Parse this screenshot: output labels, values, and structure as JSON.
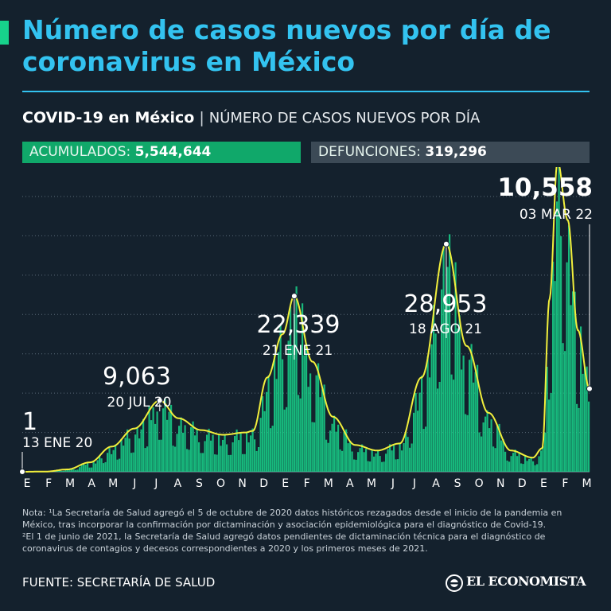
{
  "header": {
    "title": "Número de casos nuevos por día de coronavirus en México",
    "subtitle_bold": "COVID-19 en México",
    "subtitle_separator": "|",
    "subtitle_rest": "NÚMERO DE CASOS NUEVOS POR DÍA"
  },
  "stats": {
    "acumulados_label": "ACUMULADOS:",
    "acumulados_value": "5,544,644",
    "defunciones_label": "DEFUNCIONES:",
    "defunciones_value": "319,296"
  },
  "colors": {
    "background": "#14212d",
    "title": "#33c3f0",
    "bars": "#17d28b",
    "line": "#f2ef3c",
    "acumulados_box": "#10a86a",
    "defunciones_box": "#3c4a56"
  },
  "chart_data": {
    "type": "area",
    "title": "",
    "xlabel": "",
    "ylabel": "",
    "ylim": [
      0,
      35000
    ],
    "y_gridlines": [
      5000,
      10000,
      15000,
      20000,
      25000,
      30000,
      35000
    ],
    "grid": true,
    "x_tick_labels": [
      "E",
      "F",
      "M",
      "A",
      "M",
      "J",
      "J",
      "A",
      "S",
      "O",
      "N",
      "D",
      "E",
      "F",
      "M",
      "A",
      "M",
      "J",
      "J",
      "A",
      "S",
      "O",
      "N",
      "D",
      "E",
      "F",
      "M"
    ],
    "series": [
      {
        "x": [
          "2020-01-13",
          "2020-02-15",
          "2020-03-15",
          "2020-04-15",
          "2020-05-15",
          "2020-06-15",
          "2020-07-20",
          "2020-08-15",
          "2020-09-15",
          "2020-10-15",
          "2020-11-15",
          "2020-11-25",
          "2020-12-15",
          "2021-01-05",
          "2021-01-21",
          "2021-02-15",
          "2021-03-15",
          "2021-04-15",
          "2021-05-15",
          "2021-06-15",
          "2021-07-15",
          "2021-08-18",
          "2021-09-15",
          "2021-10-15",
          "2021-11-15",
          "2021-12-15",
          "2021-12-28",
          "2022-01-07",
          "2022-01-18",
          "2022-02-01",
          "2022-02-15",
          "2022-03-03"
        ],
        "values": [
          1,
          30,
          300,
          1200,
          3200,
          5500,
          9063,
          6800,
          5300,
          4700,
          5000,
          5200,
          12000,
          17500,
          22339,
          14000,
          7000,
          3400,
          2700,
          3600,
          12000,
          28953,
          16000,
          7500,
          2700,
          1800,
          3000,
          22000,
          39500,
          32000,
          18000,
          10558
        ]
      }
    ],
    "annotations": [
      {
        "value": "1",
        "date": "13 ENE 20"
      },
      {
        "value": "9,063",
        "date": "20 JUL 20"
      },
      {
        "value": "22,339",
        "date": "21 ENE 21"
      },
      {
        "value": "28,953",
        "date": "18 AGO 21"
      },
      {
        "value": "10,558",
        "date": "03 MAR 22"
      }
    ]
  },
  "notes": {
    "note1": "Nota: ¹La Secretaría de Salud agregó el 5 de octubre de 2020 datos históricos rezagados desde el inicio de la pandemia en México, tras incorporar la confirmación por dictaminación y asociación epidemiológica para el diagnóstico de Covid-19.",
    "note2": "²El 1 de junio de 2021, la Secretaría de Salud agregó datos pendientes de dictaminación técnica para el diagnóstico de coronavirus de contagios y decesos correspondientes a 2020 y los primeros meses de 2021."
  },
  "footer": {
    "source": "FUENTE: SECRETARÍA DE SALUD",
    "logo_text": "EL ECONOMISTA"
  }
}
